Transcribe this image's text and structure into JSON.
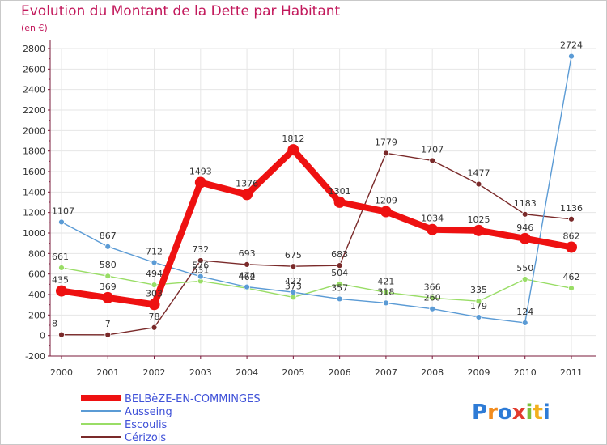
{
  "title": "Evolution du Montant de la Dette par Habitant",
  "unit": "(en €)",
  "brand": "Proxiti",
  "colors": {
    "title": "#c2185b",
    "axis": "#7a1a3a",
    "grid": "#e6e6e6",
    "legend_text": "#3f51d8"
  },
  "chart_data": {
    "type": "line",
    "title": "Evolution du Montant de la Dette par Habitant",
    "ylabel": "(en €)",
    "xlabel": "",
    "ylim": [
      -200,
      2800
    ],
    "yticks": [
      -200,
      0,
      200,
      400,
      600,
      800,
      1000,
      1200,
      1400,
      1600,
      1800,
      2000,
      2200,
      2400,
      2600,
      2800
    ],
    "grid": true,
    "legend_position": "bottom-left",
    "x": [
      "2000",
      "2001",
      "2002",
      "2003",
      "2004",
      "2005",
      "2006",
      "2007",
      "2008",
      "2009",
      "2010",
      "2011"
    ],
    "series": [
      {
        "name": "BELBèZE-EN-COMMINGES",
        "color": "#ee1111",
        "values": [
          435,
          369,
          303,
          1493,
          1376,
          1812,
          1301,
          1209,
          1034,
          1025,
          946,
          862
        ],
        "labels": [
          "435",
          "369",
          "303",
          "1493",
          "1376",
          "1812",
          "1301",
          "1209",
          "1034",
          "1025",
          "946",
          "862"
        ]
      },
      {
        "name": "Ausseing",
        "color": "#5b9bd5",
        "values": [
          1107,
          867,
          712,
          576,
          474,
          422,
          357,
          318,
          260,
          179,
          124,
          2724
        ],
        "labels": [
          "1107",
          "867",
          "712",
          "576",
          "474",
          "422",
          "357",
          "318",
          "260",
          "179",
          "124",
          "2724"
        ]
      },
      {
        "name": "Escoulis",
        "color": "#99dd66",
        "values": [
          661,
          580,
          494,
          531,
          462,
          373,
          504,
          421,
          366,
          335,
          550,
          462
        ],
        "labels": [
          "661",
          "580",
          "494",
          "531",
          "462",
          "373",
          "504",
          "421",
          "366",
          "335",
          "550",
          "462"
        ]
      },
      {
        "name": "Cérizols",
        "color": "#7a2a2a",
        "values": [
          8,
          7,
          78,
          732,
          693,
          675,
          683,
          1779,
          1707,
          1477,
          1183,
          1136
        ],
        "labels": [
          "8",
          "7",
          "78",
          "732",
          "693",
          "675",
          "683",
          "1779",
          "1707",
          "1477",
          "1183",
          "1136"
        ]
      }
    ]
  }
}
